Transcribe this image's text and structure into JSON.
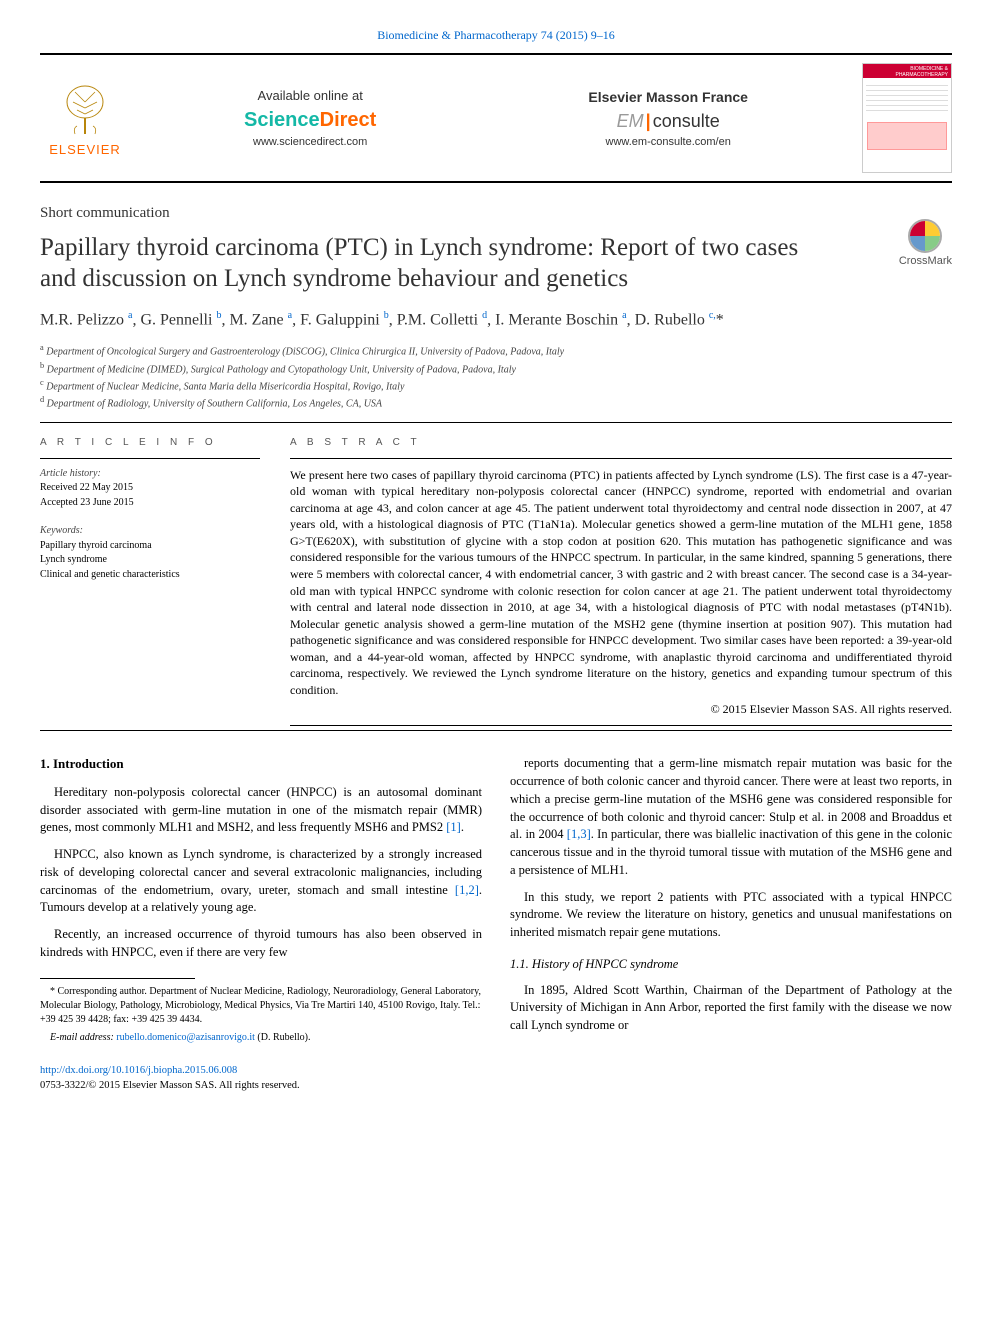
{
  "journal": {
    "citation": "Biomedicine & Pharmacotherapy 74 (2015) 9–16",
    "citation_link": "Biomedicine & Pharmacotherapy 74 (2015) 9–16",
    "cover_band": "BIOMEDICINE & PHARMACOTHERAPY"
  },
  "header": {
    "available": "Available online at",
    "sd_science": "Science",
    "sd_direct": "Direct",
    "sd_url": "www.sciencedirect.com",
    "emf": "Elsevier Masson France",
    "em_em": "EM",
    "em_consulte": "consulte",
    "em_url": "www.em-consulte.com/en",
    "elsevier": "ELSEVIER"
  },
  "crossmark": "CrossMark",
  "article": {
    "section": "Short communication",
    "title": "Papillary thyroid carcinoma (PTC) in Lynch syndrome: Report of two cases and discussion on Lynch syndrome behaviour and genetics",
    "authors_html": "M.R. Pelizzo <sup>a</sup>, G. Pennelli <sup>b</sup>, M. Zane <sup>a</sup>, F. Galuppini <sup>b</sup>, P.M. Colletti <sup>d</sup>, I. Merante Boschin <sup>a</sup>, D. Rubello <sup>c,</sup>*",
    "affiliations": [
      {
        "sup": "a",
        "text": "Department of Oncological Surgery and Gastroenterology (DiSCOG), Clinica Chirurgica II, University of Padova, Padova, Italy"
      },
      {
        "sup": "b",
        "text": "Department of Medicine (DIMED), Surgical Pathology and Cytopathology Unit, University of Padova, Padova, Italy"
      },
      {
        "sup": "c",
        "text": "Department of Nuclear Medicine, Santa Maria della Misericordia Hospital, Rovigo, Italy"
      },
      {
        "sup": "d",
        "text": "Department of Radiology, University of Southern California, Los Angeles, CA, USA"
      }
    ]
  },
  "info": {
    "heading": "A R T I C L E  I N F O",
    "history_head": "Article history:",
    "received": "Received 22 May 2015",
    "accepted": "Accepted 23 June 2015",
    "keywords_head": "Keywords:",
    "keywords": [
      "Papillary thyroid carcinoma",
      "Lynch syndrome",
      "Clinical and genetic characteristics"
    ]
  },
  "abstract": {
    "heading": "A B S T R A C T",
    "text": "We present here two cases of papillary thyroid carcinoma (PTC) in patients affected by Lynch syndrome (LS). The first case is a 47-year-old woman with typical hereditary non-polyposis colorectal cancer (HNPCC) syndrome, reported with endometrial and ovarian carcinoma at age 43, and colon cancer at age 45. The patient underwent total thyroidectomy and central node dissection in 2007, at 47 years old, with a histological diagnosis of PTC (T1aN1a). Molecular genetics showed a germ-line mutation of the MLH1 gene, 1858 G>T(E620X), with substitution of glycine with a stop codon at position 620. This mutation has pathogenetic significance and was considered responsible for the various tumours of the HNPCC spectrum. In particular, in the same kindred, spanning 5 generations, there were 5 members with colorectal cancer, 4 with endometrial cancer, 3 with gastric and 2 with breast cancer. The second case is a 34-year-old man with typical HNPCC syndrome with colonic resection for colon cancer at age 21. The patient underwent total thyroidectomy with central and lateral node dissection in 2010, at age 34, with a histological diagnosis of PTC with nodal metastases (pT4N1b). Molecular genetic analysis showed a germ-line mutation of the MSH2 gene (thymine insertion at position 907). This mutation had pathogenetic significance and was considered responsible for HNPCC development. Two similar cases have been reported: a 39-year-old woman, and a 44-year-old woman, affected by HNPCC syndrome, with anaplastic thyroid carcinoma and undifferentiated thyroid carcinoma, respectively. We reviewed the Lynch syndrome literature on the history, genetics and expanding tumour spectrum of this condition.",
    "copyright": "© 2015 Elsevier Masson SAS. All rights reserved."
  },
  "body": {
    "intro_head": "1. Introduction",
    "p1": "Hereditary non-polyposis colorectal cancer (HNPCC) is an autosomal dominant disorder associated with germ-line mutation in one of the mismatch repair (MMR) genes, most commonly MLH1 and MSH2, and less frequently MSH6 and PMS2 ",
    "p1_ref": "[1]",
    "p1_end": ".",
    "p2a": "HNPCC, also known as Lynch syndrome, is characterized by a strongly increased risk of developing colorectal cancer and several extracolonic malignancies, including carcinomas of the endometrium, ovary, ureter, stomach and small intestine ",
    "p2_ref": "[1,2]",
    "p2b": ". Tumours develop at a relatively young age.",
    "p3": "Recently, an increased occurrence of thyroid tumours has also been observed in kindreds with HNPCC, even if there are very few",
    "p4a": "reports documenting that a germ-line mismatch repair mutation was basic for the occurrence of both colonic cancer and thyroid cancer. There were at least two reports, in which a precise germ-line mutation of the MSH6 gene was considered responsible for the occurrence of both colonic and thyroid cancer: Stulp et al. in 2008 and Broaddus et al. in 2004 ",
    "p4_ref": "[1,3]",
    "p4b": ". In particular, there was biallelic inactivation of this gene in the colonic cancerous tissue and in the thyroid tumoral tissue with mutation of the MSH6 gene and a persistence of MLH1.",
    "p5": "In this study, we report 2 patients with PTC associated with a typical HNPCC syndrome. We review the literature on history, genetics and unusual manifestations on inherited mismatch repair gene mutations.",
    "subhead": "1.1. History of HNPCC syndrome",
    "p6": "In 1895, Aldred Scott Warthin, Chairman of the Department of Pathology at the University of Michigan in Ann Arbor, reported the first family with the disease we now call Lynch syndrome or"
  },
  "footnote": {
    "star": "* Corresponding author. Department of Nuclear Medicine, Radiology, Neuroradiology, General Laboratory, Molecular Biology, Pathology, Microbiology, Medical Physics, Via Tre Martiri 140, 45100 Rovigo, Italy. Tel.: +39 425 39 4428; fax: +39 425 39 4434.",
    "email_label": "E-mail address:",
    "email": "rubello.domenico@azisanrovigo.it",
    "email_who": "(D. Rubello)."
  },
  "footer": {
    "doi": "http://dx.doi.org/10.1016/j.biopha.2015.06.008",
    "issn": "0753-3322/© 2015 Elsevier Masson SAS. All rights reserved."
  },
  "colors": {
    "link": "#0066cc",
    "orange": "#ff6600",
    "teal": "#14b8a6",
    "red": "#cc0033"
  }
}
